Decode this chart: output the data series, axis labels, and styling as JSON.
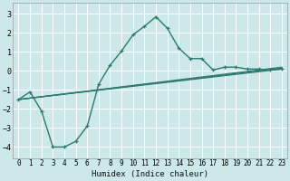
{
  "xlabel": "Humidex (Indice chaleur)",
  "bg_color": "#cce8e8",
  "grid_color": "#ffffff",
  "line_color": "#2d7a70",
  "xlim": [
    -0.5,
    23.5
  ],
  "ylim": [
    -4.6,
    3.6
  ],
  "xticks": [
    0,
    1,
    2,
    3,
    4,
    5,
    6,
    7,
    8,
    9,
    10,
    11,
    12,
    13,
    14,
    15,
    16,
    17,
    18,
    19,
    20,
    21,
    22,
    23
  ],
  "yticks": [
    -4,
    -3,
    -2,
    -1,
    0,
    1,
    2,
    3
  ],
  "line1_x": [
    0,
    1,
    2,
    3,
    4,
    5,
    6,
    7,
    8,
    9,
    10,
    11,
    12,
    13,
    14,
    15,
    16,
    17,
    18,
    19,
    20,
    21,
    22,
    23
  ],
  "line1_y": [
    -1.5,
    -1.1,
    -2.1,
    -4.0,
    -4.0,
    -3.7,
    -2.9,
    -0.7,
    0.3,
    1.05,
    1.9,
    2.35,
    2.85,
    2.25,
    1.2,
    0.65,
    0.65,
    0.05,
    0.2,
    0.2,
    0.1,
    0.1,
    0.05,
    0.1
  ],
  "line2_x": [
    0,
    23
  ],
  "line2_y": [
    -1.5,
    0.1
  ],
  "line3_x": [
    0,
    23
  ],
  "line3_y": [
    -1.5,
    0.15
  ],
  "line4_x": [
    0,
    23
  ],
  "line4_y": [
    -1.5,
    0.2
  ]
}
